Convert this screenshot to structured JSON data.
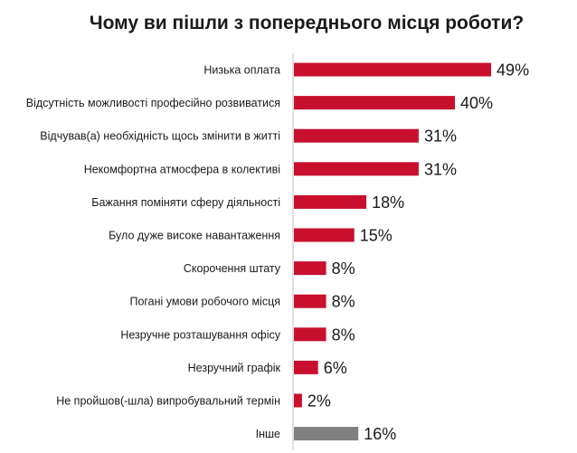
{
  "chart_data": {
    "type": "bar",
    "orientation": "horizontal",
    "title": "Чому ви пішли з попереднього місця роботи?",
    "categories": [
      "Низька оплата",
      "Відсутність можливості професійно розвиватися",
      "Відчував(а) необхідність щось змінити в житті",
      "Некомфортна атмосфера в колективі",
      "Бажання поміняти сферу діяльності",
      "Було дуже високе навантаження",
      "Скорочення штату",
      "Погані умови робочого місця",
      "Незручне розташування офісу",
      "Незручний графік",
      "Не пройшов(-шла) випробувальний термін",
      "Інше"
    ],
    "values": [
      49,
      40,
      31,
      31,
      18,
      15,
      8,
      8,
      8,
      6,
      2,
      16
    ],
    "value_labels": [
      "49%",
      "40%",
      "31%",
      "31%",
      "18%",
      "15%",
      "8%",
      "8%",
      "8%",
      "6%",
      "2%",
      "16%"
    ],
    "unit": "%",
    "colors": {
      "primary": "#c8102e",
      "other": "#808080",
      "axis": "#bfbfbf"
    },
    "other_category_index": 11,
    "grid": false,
    "legend": "none"
  }
}
